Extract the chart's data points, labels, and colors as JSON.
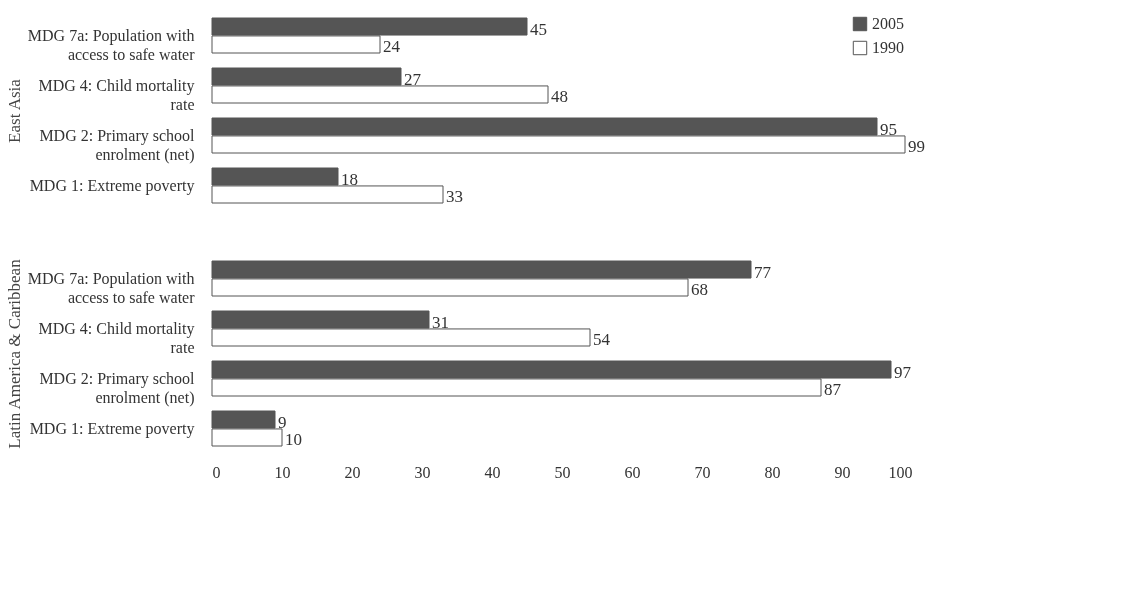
{
  "chart_data": [
    {
      "type": "bar",
      "orientation": "horizontal",
      "ylabel": "East Asia",
      "categories": [
        "MDG 7a: Population with access to safe water",
        "MDG 4: Child mortality rate",
        "MDG 2: Primary school enrolment (net)",
        "MDG 1: Extreme poverty"
      ],
      "series": [
        {
          "name": "2005",
          "color": "#555555",
          "values": [
            45,
            27,
            95,
            18
          ]
        },
        {
          "name": "1990",
          "color": "#ffffff",
          "values": [
            24,
            48,
            99,
            33
          ]
        }
      ],
      "xlim": [
        0,
        100
      ],
      "data_labels": true,
      "legend": "top right",
      "tick_labels": "y"
    },
    {
      "type": "bar",
      "orientation": "horizontal",
      "ylabel": "Latin America & Caribbean",
      "categories": [
        "MDG 7a: Population with access to safe water",
        "MDG 4: Child mortality rate",
        "MDG 2: Primary school enrolment (net)",
        "MDG 1: Extreme poverty"
      ],
      "series": [
        {
          "name": "2005",
          "color": "#555555",
          "values": [
            77,
            31,
            97,
            9
          ]
        },
        {
          "name": "1990",
          "color": "#ffffff",
          "values": [
            68,
            54,
            87,
            10
          ]
        }
      ],
      "xlim": [
        0,
        100
      ],
      "xticks": [
        0,
        10,
        20,
        30,
        40,
        50,
        60,
        70,
        80,
        90,
        100
      ],
      "data_labels": true
    }
  ]
}
